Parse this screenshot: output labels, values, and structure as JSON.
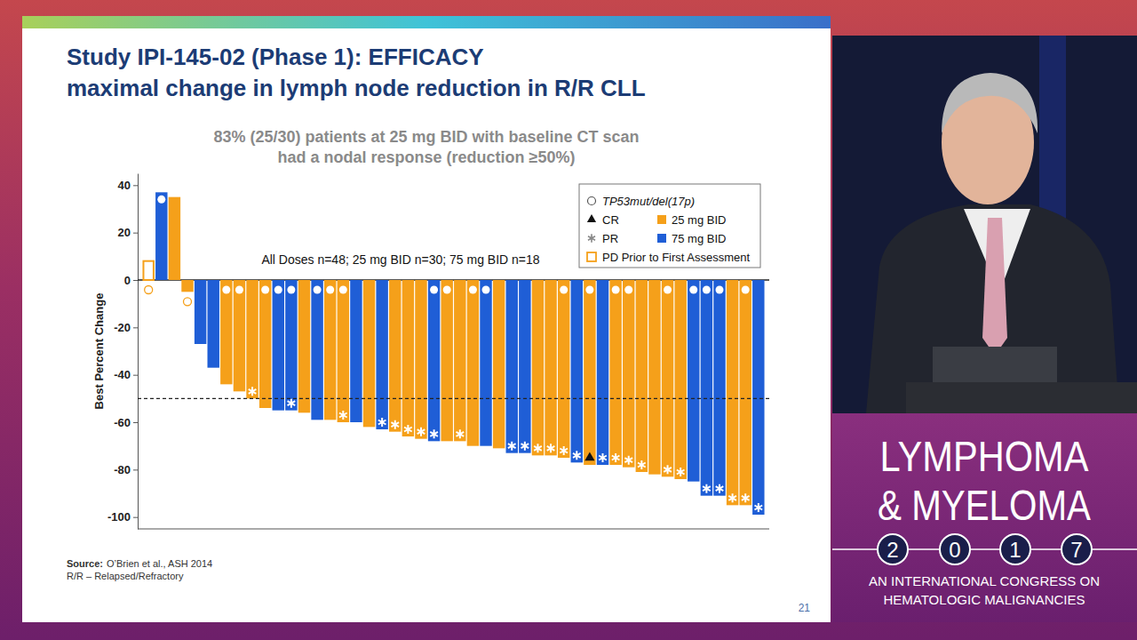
{
  "slide": {
    "title": [
      "Study IPI-145-02 (Phase 1): EFFICACY",
      "maximal change in lymph node reduction in R/R CLL"
    ],
    "source_label": "Source:",
    "source": "O’Brien et al., ASH 2014",
    "footnote": "R/R – Relapsed/Refractory",
    "page_number": 21
  },
  "congress": {
    "name_lines": [
      "LYMPHOMA",
      "& MYELOMA"
    ],
    "year_digits": [
      "2",
      "0",
      "1",
      "7"
    ],
    "tagline": [
      "AN INTERNATIONAL CONGRESS ON",
      "HEMATOLOGIC MALIGNANCIES"
    ]
  },
  "chart_data": {
    "type": "bar",
    "subtitle": [
      "83% (25/30) patients at 25 mg BID with baseline CT scan",
      "had a nodal response (reduction ≥50%)"
    ],
    "annotation": "All Doses n=48; 25 mg BID n=30; 75 mg BID n=18",
    "y_label": "Best Percent Change",
    "categories": [
      null,
      null,
      null,
      null,
      null,
      null,
      null,
      null,
      null,
      null,
      null,
      null,
      null,
      null,
      null,
      null,
      null,
      null,
      null,
      null,
      null,
      null,
      null,
      null,
      null,
      null,
      null,
      null,
      null,
      null,
      null,
      null,
      null,
      null,
      null,
      null,
      null,
      null,
      null,
      null,
      null,
      null,
      null,
      null,
      null,
      null,
      null,
      null
    ],
    "series": [
      {
        "name": "25 mg BID",
        "color": "#f5a01a",
        "values": [
          8,
          null,
          35,
          -5,
          null,
          null,
          -44,
          -47,
          -50,
          -54,
          null,
          null,
          -56,
          null,
          -59,
          -60,
          null,
          -62,
          null,
          -64,
          -66,
          -67,
          null,
          -68,
          -68,
          -70,
          null,
          -71,
          null,
          null,
          -74,
          -74,
          -75,
          null,
          -78,
          null,
          -78,
          -79,
          -81,
          -82,
          -83,
          -84,
          null,
          null,
          null,
          -95,
          -95,
          null
        ]
      },
      {
        "name": "75 mg BID",
        "color": "#1f5ed6",
        "values": [
          null,
          37,
          null,
          null,
          -27,
          -37,
          null,
          null,
          null,
          null,
          -55,
          -55,
          null,
          -59,
          null,
          null,
          -60,
          null,
          -63,
          null,
          null,
          null,
          -68,
          null,
          null,
          null,
          -70,
          null,
          -73,
          -73,
          null,
          null,
          null,
          -77,
          null,
          -78,
          null,
          null,
          null,
          null,
          null,
          null,
          -85,
          -91,
          -91,
          null,
          null,
          -99
        ]
      }
    ],
    "tp53": [
      true,
      true,
      false,
      true,
      false,
      false,
      true,
      true,
      false,
      true,
      true,
      true,
      false,
      true,
      true,
      true,
      false,
      false,
      false,
      false,
      false,
      false,
      true,
      true,
      false,
      true,
      true,
      false,
      false,
      false,
      false,
      false,
      true,
      false,
      true,
      false,
      true,
      true,
      false,
      false,
      true,
      false,
      true,
      true,
      true,
      false,
      true,
      false
    ],
    "response": [
      null,
      null,
      null,
      null,
      null,
      null,
      null,
      null,
      "PR",
      null,
      null,
      "PR",
      null,
      null,
      null,
      "PR",
      null,
      null,
      "PR",
      "PR",
      "PR",
      "PR",
      "PR",
      null,
      "PR",
      null,
      null,
      null,
      "PR",
      "PR",
      "PR",
      "PR",
      "PR",
      "PR",
      "CR",
      "PR",
      "PR",
      "PR",
      "PR",
      null,
      "PR",
      "PR",
      null,
      "PR",
      "PR",
      "PR",
      "PR",
      "PR"
    ],
    "pd_prior": [
      true,
      false,
      false,
      false,
      false,
      false,
      false,
      false,
      false,
      false,
      false,
      false,
      false,
      false,
      false,
      false,
      false,
      false,
      false,
      false,
      false,
      false,
      false,
      false,
      false,
      false,
      false,
      false,
      false,
      false,
      false,
      false,
      false,
      false,
      false,
      false,
      false,
      false,
      false,
      false,
      false,
      false,
      false,
      false,
      false,
      false,
      false,
      false
    ],
    "legend_symbols": [
      {
        "label": "TP53mut/del(17p)",
        "marker": "circle"
      },
      {
        "label": "CR",
        "marker": "triangle"
      },
      {
        "label": "PR",
        "marker": "asterisk"
      },
      {
        "label": "PD Prior to First Assessment",
        "marker": "open-square"
      }
    ],
    "reference_line": -50,
    "ylim": [
      -105,
      45
    ],
    "yticks": [
      40,
      20,
      0,
      -20,
      -40,
      -60,
      -80,
      -100
    ],
    "legend": "top-right",
    "tick_labels": "y"
  }
}
